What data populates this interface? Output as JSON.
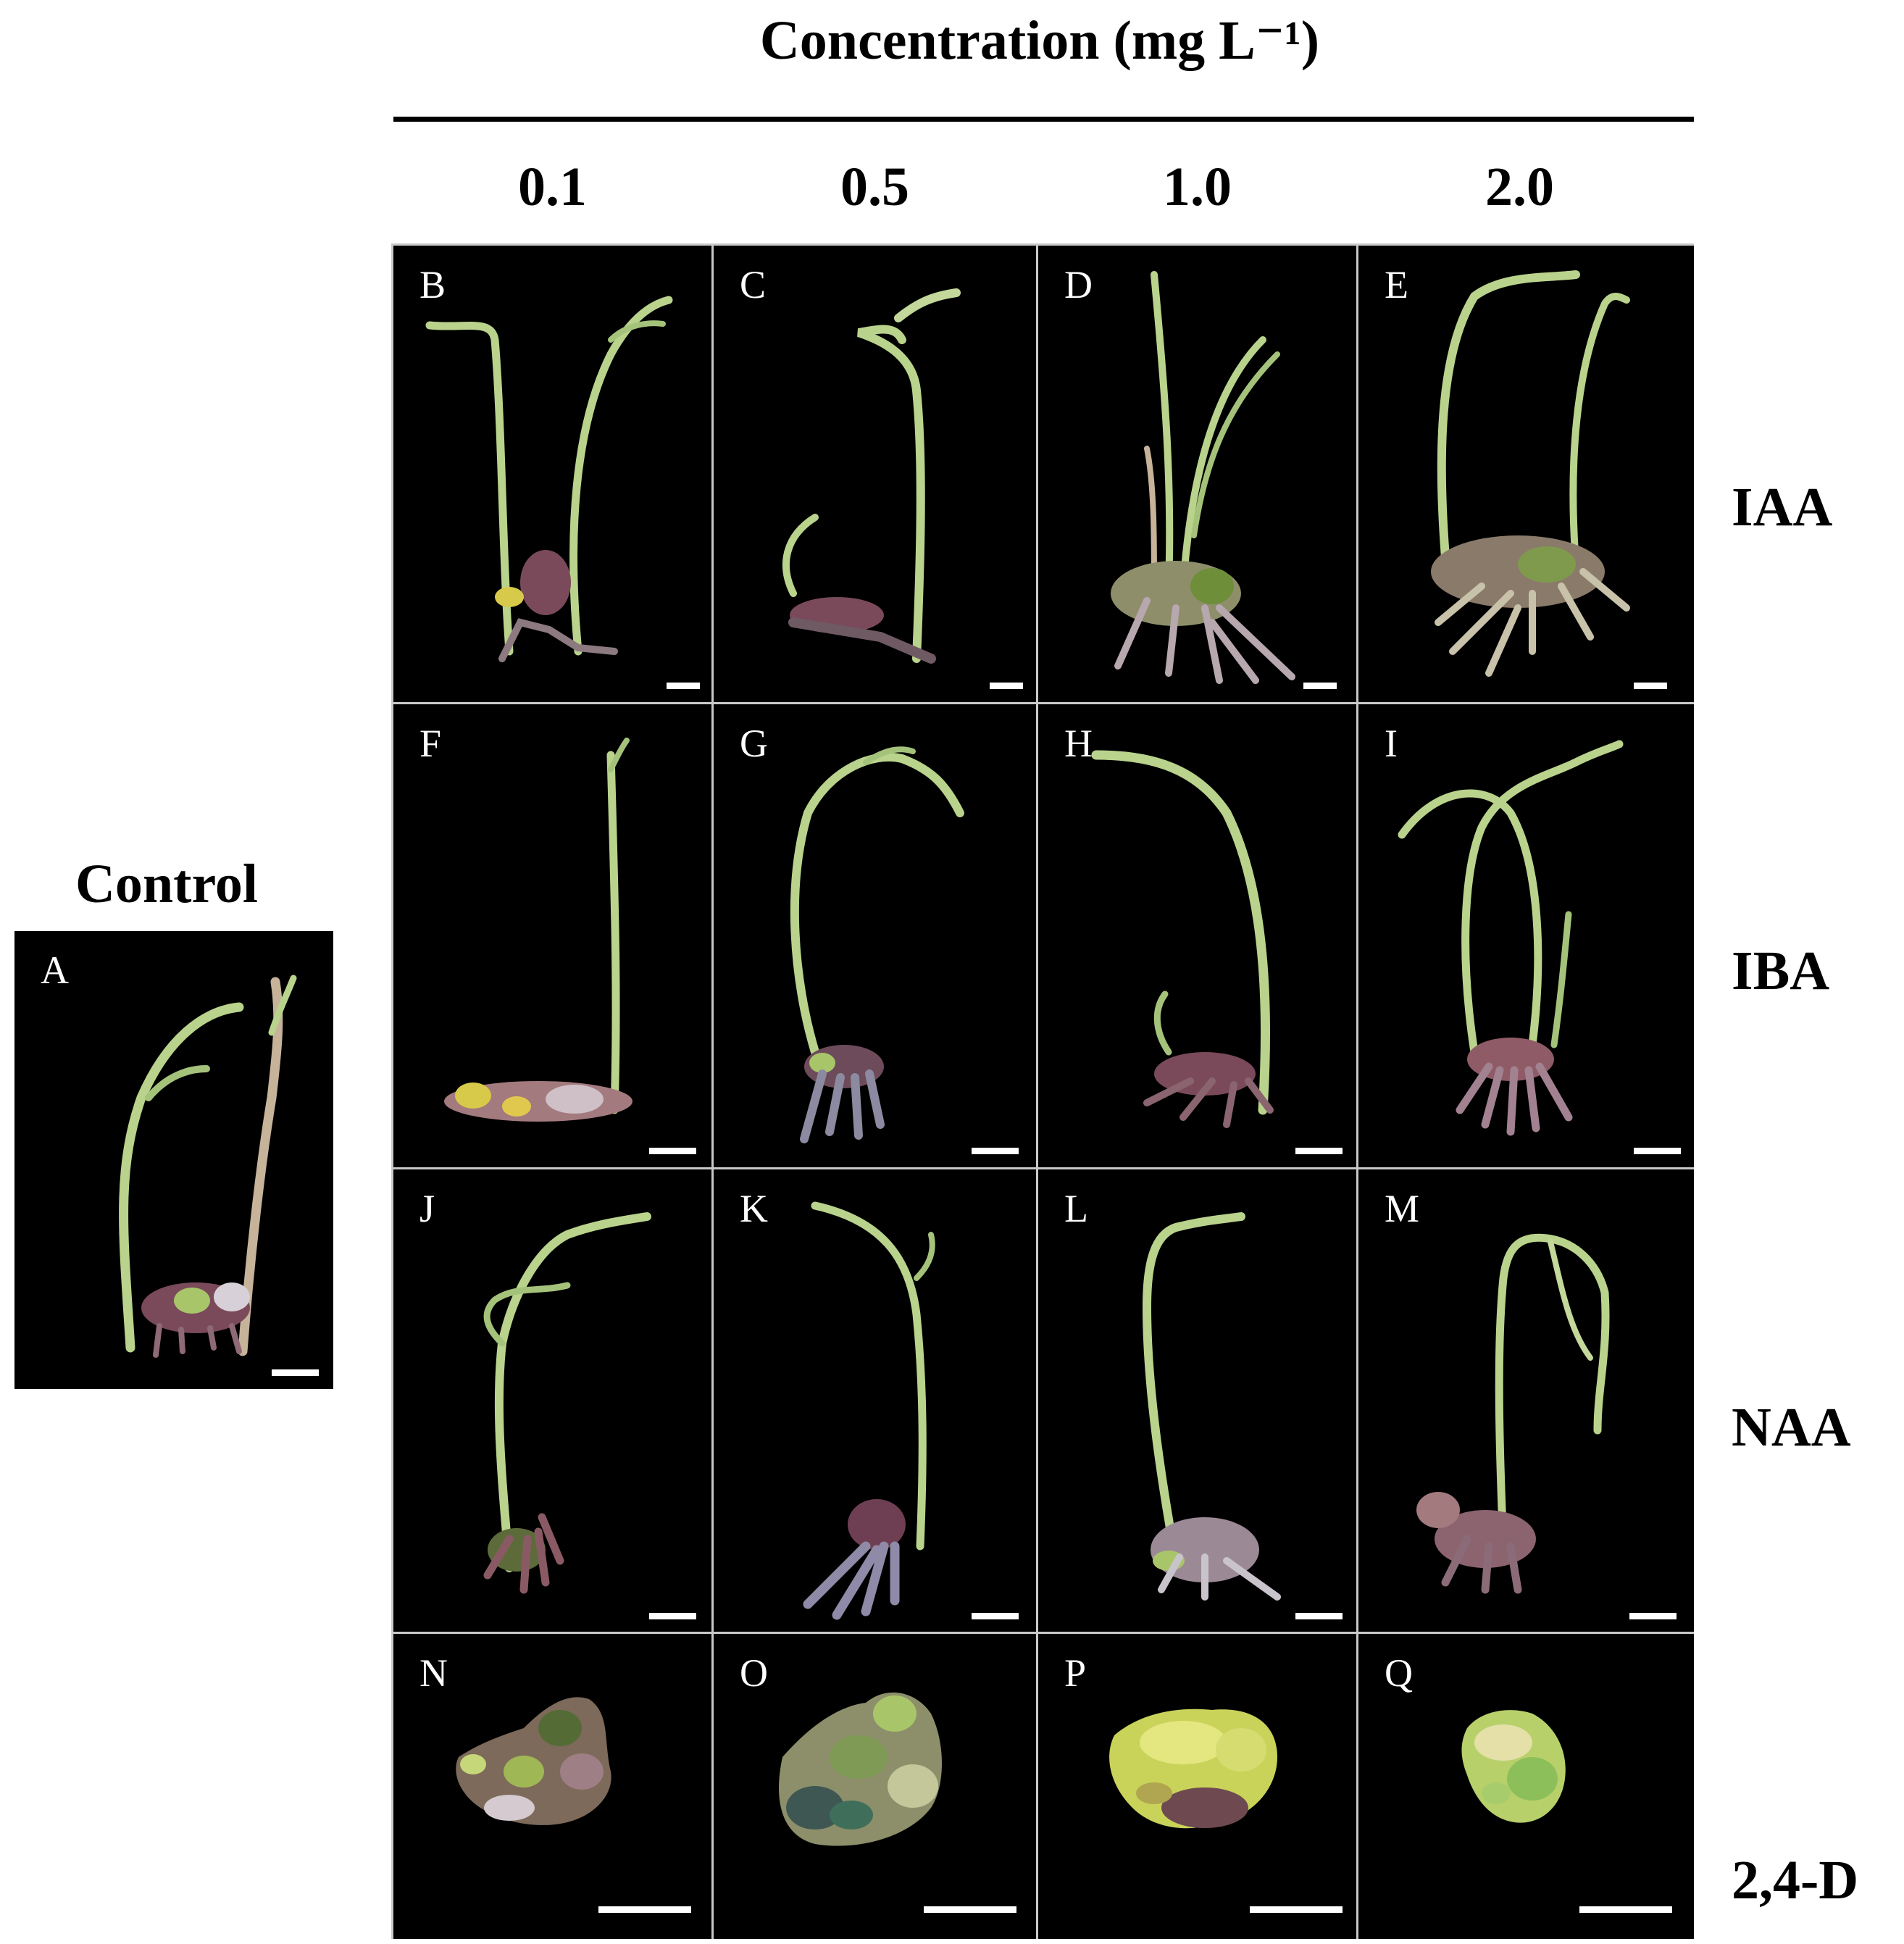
{
  "title": "Concentration (mg L⁻¹)",
  "control_label": "Control",
  "columns": [
    "0.1",
    "0.5",
    "1.0",
    "2.0"
  ],
  "rows": [
    "IAA",
    "IBA",
    "NAA",
    "2,4-D"
  ],
  "panels": {
    "A": "A",
    "B": "B",
    "C": "C",
    "D": "D",
    "E": "E",
    "F": "F",
    "G": "G",
    "H": "H",
    "I": "I",
    "J": "J",
    "K": "K",
    "L": "L",
    "M": "M",
    "N": "N",
    "O": "O",
    "P": "P",
    "Q": "Q"
  },
  "colors": {
    "panel_background": "#000000",
    "shoot_green": "#b9d38c",
    "base_purple": "#7a4a5a",
    "callus_green": "#a9c56a",
    "scale_bar": "#ffffff"
  }
}
